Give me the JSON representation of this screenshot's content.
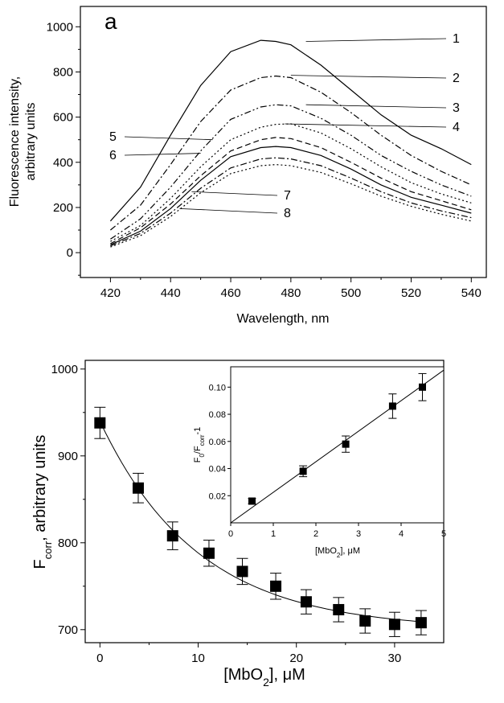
{
  "chart_data": [
    {
      "type": "line",
      "panel_letter": "a",
      "xlabel": "Wavelength, nm",
      "ylabel_line1": "Fluorescence intensity,",
      "ylabel_line2": "arbitrary units",
      "xlim": [
        410,
        545
      ],
      "ylim": [
        -110,
        1090
      ],
      "x_ticks": [
        420,
        440,
        460,
        480,
        500,
        520,
        540
      ],
      "y_ticks": [
        0,
        200,
        400,
        600,
        800,
        1000
      ],
      "grid": false,
      "legend": "none",
      "x": [
        420,
        430,
        440,
        450,
        460,
        470,
        475,
        480,
        490,
        500,
        510,
        520,
        530,
        540
      ],
      "series": [
        {
          "name": "1",
          "style": "solid",
          "label_at": [
            485,
            935
          ],
          "values": [
            140,
            290,
            520,
            740,
            890,
            940,
            935,
            920,
            830,
            720,
            610,
            520,
            460,
            390
          ]
        },
        {
          "name": "2",
          "style": "dashdot",
          "label_at": [
            480,
            785
          ],
          "values": [
            100,
            210,
            390,
            580,
            720,
            775,
            782,
            775,
            710,
            620,
            520,
            430,
            360,
            300
          ]
        },
        {
          "name": "3",
          "style": "dashdotdot",
          "label_at": [
            485,
            655
          ],
          "values": [
            60,
            150,
            290,
            450,
            590,
            645,
            655,
            650,
            595,
            520,
            430,
            360,
            300,
            250
          ]
        },
        {
          "name": "4",
          "style": "dot",
          "label_at": [
            478,
            570
          ],
          "values": [
            50,
            120,
            240,
            380,
            500,
            555,
            568,
            570,
            530,
            460,
            380,
            310,
            260,
            220
          ]
        },
        {
          "name": "5",
          "style": "dash",
          "label_at": [
            454,
            500
          ],
          "values": [
            40,
            110,
            215,
            340,
            450,
            500,
            510,
            505,
            465,
            400,
            330,
            270,
            230,
            190
          ]
        },
        {
          "name": "6",
          "style": "solid",
          "label_at": [
            450,
            440
          ],
          "values": [
            35,
            95,
            195,
            320,
            425,
            465,
            470,
            465,
            430,
            370,
            300,
            245,
            210,
            175
          ]
        },
        {
          "name": "7",
          "style": "dashdot",
          "label_at": [
            447,
            270
          ],
          "values": [
            30,
            85,
            175,
            285,
            375,
            415,
            420,
            415,
            385,
            330,
            270,
            220,
            185,
            155
          ]
        },
        {
          "name": "8",
          "style": "dot",
          "label_at": [
            443,
            195
          ],
          "values": [
            25,
            75,
            160,
            265,
            350,
            385,
            390,
            385,
            355,
            305,
            250,
            205,
            170,
            140
          ]
        }
      ],
      "curve_labels": [
        "1",
        "2",
        "3",
        "4",
        "5",
        "6",
        "7",
        "8"
      ]
    },
    {
      "type": "scatter",
      "xlabel_main": "[MbO",
      "xlabel_sub": "2",
      "xlabel_rest": "], μM",
      "ylabel_main": "F",
      "ylabel_sub": "corr",
      "ylabel_rest": ", arbitrary units",
      "xlim": [
        -1.5,
        35
      ],
      "ylim": [
        685,
        1010
      ],
      "x_ticks": [
        0,
        10,
        20,
        30
      ],
      "y_ticks": [
        700,
        800,
        900,
        1000
      ],
      "grid": false,
      "legend": "none",
      "points": {
        "x": [
          0,
          3.9,
          7.4,
          11.1,
          14.5,
          17.9,
          21,
          24.3,
          27,
          30,
          32.7
        ],
        "y": [
          938,
          863,
          808,
          788,
          767,
          750,
          732,
          723,
          710,
          706,
          708
        ],
        "err": [
          18,
          17,
          16,
          15,
          15,
          15,
          14,
          14,
          14,
          14,
          14
        ]
      },
      "fit": {
        "model": "exponential decay",
        "y0": 700,
        "A": 240,
        "tau": 10
      }
    },
    {
      "type": "scatter",
      "inset": true,
      "xlabel_main": "[MbO",
      "xlabel_sub": "2",
      "xlabel_rest": "], μM",
      "ylabel_p1": "F",
      "ylabel_s1": "0",
      "ylabel_p2": "/F",
      "ylabel_s2": "corr",
      "ylabel_p3": "-1",
      "xlim": [
        0,
        5
      ],
      "ylim": [
        0,
        0.115
      ],
      "x_ticks": [
        0,
        1,
        2,
        3,
        4,
        5
      ],
      "y_ticks": [
        0.02,
        0.04,
        0.06,
        0.08,
        0.1
      ],
      "y_tick_labels": [
        "0.02",
        "0.04",
        "0.06",
        "0.08",
        "0.10"
      ],
      "grid": false,
      "legend": "none",
      "points": {
        "x": [
          0.5,
          1.7,
          2.7,
          3.8,
          4.5
        ],
        "y": [
          0.016,
          0.038,
          0.058,
          0.086,
          0.1
        ],
        "err": [
          0.002,
          0.004,
          0.006,
          0.009,
          0.01
        ]
      },
      "fit": {
        "model": "linear",
        "slope": 0.0225,
        "intercept": 0
      }
    }
  ]
}
